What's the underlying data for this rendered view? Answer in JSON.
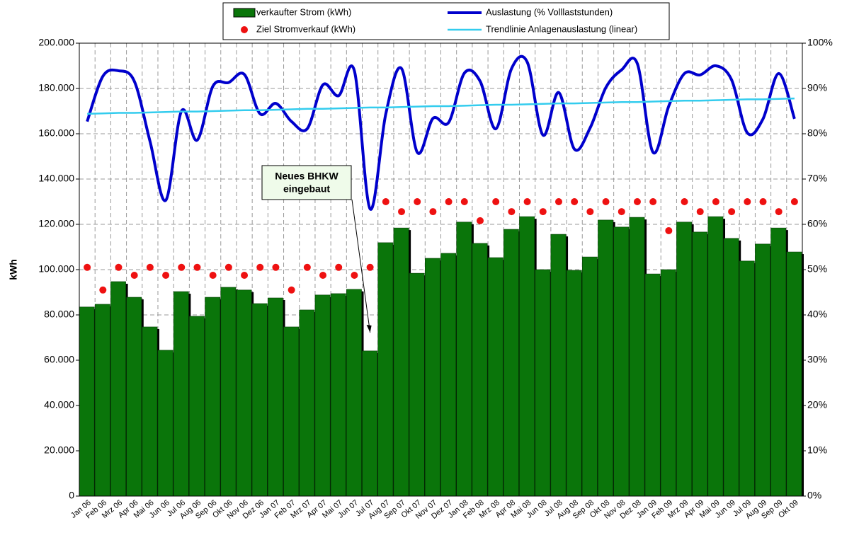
{
  "chart_data": {
    "type": "bar_line",
    "categories": [
      "Jan 06",
      "Feb 06",
      "Mrz 06",
      "Apr 06",
      "Mai 06",
      "Jun 06",
      "Jul 06",
      "Aug 06",
      "Sep 06",
      "Okt 06",
      "Nov 06",
      "Dez 06",
      "Jan 07",
      "Feb 07",
      "Mrz 07",
      "Apr 07",
      "Mai 07",
      "Jun 07",
      "Jul 07",
      "Aug 07",
      "Sep 07",
      "Okt 07",
      "Nov 07",
      "Dez 07",
      "Jan 08",
      "Feb 08",
      "Mrz 08",
      "Apr 08",
      "Mai 08",
      "Jun 08",
      "Jul 08",
      "Aug 08",
      "Sep 08",
      "Okt 08",
      "Nov 08",
      "Dez 08",
      "Jan 09",
      "Feb 09",
      "Mrz 09",
      "Apr 09",
      "Mai 09",
      "Jun 09",
      "Jul 09",
      "Aug 09",
      "Sep 09",
      "Okt 09"
    ],
    "series": [
      {
        "name": "verkaufter Strom (kWh)",
        "kind": "bar",
        "color": "#0a750a",
        "values": [
          83500,
          84700,
          94700,
          87800,
          74700,
          64400,
          90300,
          79400,
          87800,
          92200,
          91000,
          85000,
          87500,
          74700,
          82200,
          88800,
          89400,
          91300,
          64100,
          111900,
          118400,
          98400,
          105000,
          107200,
          121000,
          111600,
          105300,
          117800,
          123400,
          100000,
          115600,
          99700,
          105600,
          121900,
          118800,
          123100,
          98100,
          100000,
          121000,
          116600,
          123400,
          113800,
          103800,
          111300,
          118400,
          107800
        ]
      },
      {
        "name": "Ziel Stromverkauf (kWh)",
        "kind": "dot",
        "color": "#ee1111",
        "values": [
          101000,
          91000,
          101000,
          97500,
          101000,
          97500,
          101000,
          101000,
          97500,
          101000,
          97500,
          101000,
          101000,
          91000,
          101000,
          97500,
          101000,
          97500,
          101000,
          130000,
          125600,
          130000,
          125600,
          130000,
          130000,
          121600,
          130000,
          125600,
          130000,
          125600,
          130000,
          130000,
          125600,
          130000,
          125600,
          130000,
          130000,
          117200,
          130000,
          125600,
          130000,
          125600,
          130000,
          130000,
          125600,
          130000
        ]
      },
      {
        "name": "Auslastung (% Volllaststunden)",
        "kind": "line",
        "axis": "y2",
        "color": "#0000cc",
        "values": [
          82.7,
          92.7,
          93.9,
          91.6,
          78.3,
          65.3,
          85,
          78.6,
          90.5,
          91.3,
          93.1,
          84.4,
          86.7,
          82.7,
          81.1,
          90.8,
          88.4,
          93.9,
          63.4,
          84.4,
          94.4,
          75.9,
          83.4,
          82.5,
          93.4,
          91.6,
          81.1,
          94.4,
          95.8,
          79.7,
          89.1,
          76.6,
          81.3,
          90.2,
          94.1,
          95.5,
          75.9,
          86.1,
          93.3,
          93,
          95,
          91.9,
          80.2,
          83.3,
          93.3,
          83.3
        ]
      },
      {
        "name": "Trendlinie Anlagenauslastung (linear)",
        "kind": "trend",
        "axis": "y2",
        "color": "#33ccee",
        "values": [
          84.4,
          84.5,
          84.6,
          84.6,
          84.7,
          84.8,
          84.9,
          84.9,
          85.0,
          85.1,
          85.2,
          85.2,
          85.3,
          85.4,
          85.5,
          85.5,
          85.6,
          85.7,
          85.8,
          85.8,
          85.9,
          86.0,
          86.1,
          86.1,
          86.2,
          86.3,
          86.4,
          86.4,
          86.5,
          86.6,
          86.7,
          86.7,
          86.8,
          86.9,
          87.0,
          87.0,
          87.1,
          87.2,
          87.3,
          87.3,
          87.4,
          87.5,
          87.6,
          87.6,
          87.7,
          87.8
        ]
      }
    ],
    "ylabel": "kWh",
    "ylim": [
      0,
      200000
    ],
    "yticks": [
      0,
      {
        "value": 20000,
        "label": "20.000"
      },
      {
        "value": 40000,
        "label": "40.000"
      },
      {
        "value": 60000,
        "label": "60.000"
      },
      {
        "value": 80000,
        "label": "80.000"
      },
      {
        "value": 100000,
        "label": "100.000"
      },
      {
        "value": 120000,
        "label": "120.000"
      },
      {
        "value": 140000,
        "label": "140.000"
      },
      {
        "value": 160000,
        "label": "160.000"
      },
      {
        "value": 180000,
        "label": "180.000"
      },
      {
        "value": 200000,
        "label": "200.000"
      }
    ],
    "y2lim": [
      0,
      100
    ],
    "y2ticks": [
      {
        "value": 0,
        "label": "0%"
      },
      {
        "value": 10,
        "label": "10%"
      },
      {
        "value": 20,
        "label": "20%"
      },
      {
        "value": 30,
        "label": "30%"
      },
      {
        "value": 40,
        "label": "40%"
      },
      {
        "value": 50,
        "label": "50%"
      },
      {
        "value": 60,
        "label": "60%"
      },
      {
        "value": 70,
        "label": "70%"
      },
      {
        "value": 80,
        "label": "80%"
      },
      {
        "value": 90,
        "label": "90%"
      },
      {
        "value": 100,
        "label": "100%"
      }
    ],
    "grid": true,
    "legend": "top",
    "annotation": {
      "lines": [
        "Neues BHKW",
        "eingebaut"
      ],
      "at": "Jul 07"
    }
  }
}
